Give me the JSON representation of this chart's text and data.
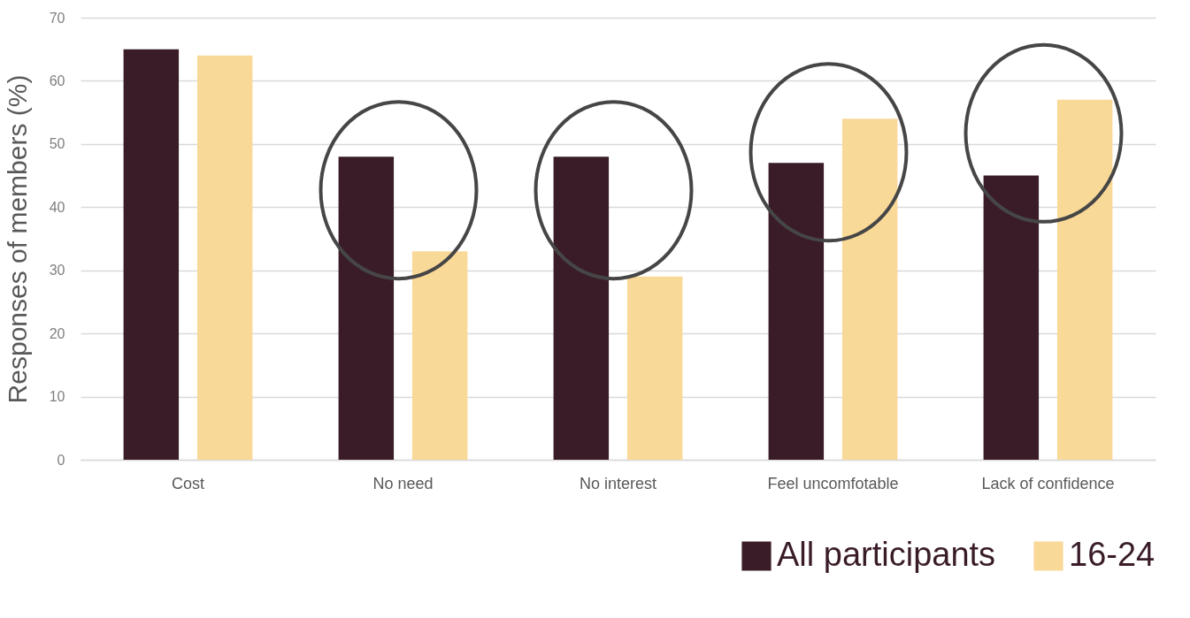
{
  "chart_data": {
    "type": "bar",
    "ylabel": "Responses of members (%)",
    "categories": [
      "Cost",
      "No need",
      "No interest",
      "Feel uncomfotable",
      "Lack of confidence"
    ],
    "series": [
      {
        "name": "All participants",
        "color": "#3a1c29",
        "values": [
          65,
          48,
          48,
          47,
          45
        ]
      },
      {
        "name": "16-24",
        "color": "#f9d998",
        "values": [
          64,
          33,
          29,
          54,
          57
        ]
      }
    ],
    "ylim": [
      0,
      70
    ],
    "yticks": [
      0,
      10,
      20,
      30,
      40,
      50,
      60,
      70
    ],
    "grid": "y",
    "legend": "bottom right"
  }
}
